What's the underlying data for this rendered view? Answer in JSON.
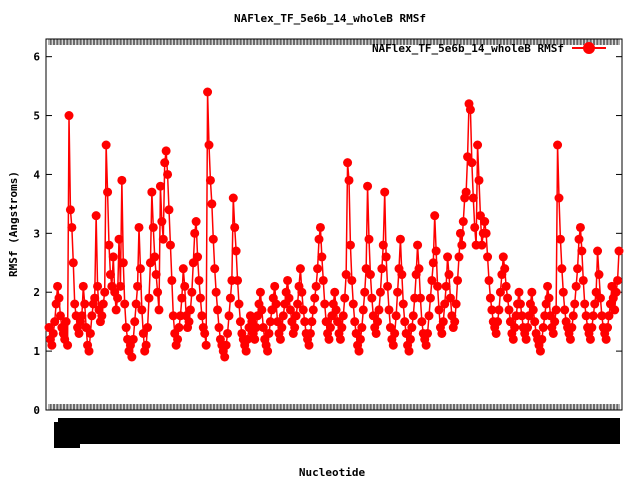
{
  "chart_data": {
    "type": "line",
    "title": "NAFlex_TF_5e6b_14_wholeB RMSf",
    "xlabel": "Nucleotide",
    "ylabel": "RMSf (Angstroms)",
    "ylim": [
      0,
      6.3
    ],
    "yticks": [
      "0",
      "1",
      "2",
      "3",
      "4",
      "5",
      "6"
    ],
    "x_tick_labels_legible": false,
    "legend_position": "top-right",
    "series": [
      {
        "name": "NAFlex_TF_5e6b_14_wholeB RMSf",
        "color": "#ff0000",
        "marker": "filled-circle",
        "values": [
          1.4,
          1.2,
          1.1,
          1.3,
          1.5,
          1.8,
          2.1,
          1.9,
          1.6,
          1.4,
          1.3,
          1.2,
          1.5,
          1.1,
          5.0,
          3.4,
          3.1,
          2.5,
          1.8,
          1.6,
          1.4,
          1.3,
          1.5,
          1.6,
          2.1,
          1.8,
          1.4,
          1.1,
          1.0,
          1.3,
          1.6,
          1.8,
          1.9,
          3.3,
          2.1,
          1.7,
          1.5,
          1.6,
          1.8,
          2.0,
          4.5,
          3.7,
          2.8,
          2.3,
          2.1,
          2.6,
          2.0,
          1.7,
          1.9,
          2.9,
          2.1,
          3.9,
          2.5,
          1.8,
          1.4,
          1.2,
          1.0,
          1.1,
          0.9,
          1.2,
          1.5,
          1.8,
          2.1,
          3.1,
          2.4,
          1.7,
          1.3,
          1.0,
          1.1,
          1.4,
          1.9,
          2.5,
          3.7,
          3.1,
          2.6,
          2.3,
          2.0,
          1.7,
          3.8,
          3.2,
          2.9,
          4.2,
          4.4,
          4.0,
          3.4,
          2.8,
          2.2,
          1.6,
          1.3,
          1.1,
          1.2,
          1.4,
          1.6,
          1.9,
          2.4,
          2.1,
          1.6,
          1.4,
          1.5,
          1.7,
          2.0,
          2.5,
          3.0,
          3.2,
          2.6,
          2.2,
          1.9,
          1.6,
          1.4,
          1.3,
          1.1,
          5.4,
          4.5,
          3.9,
          3.5,
          2.9,
          2.4,
          2.0,
          1.7,
          1.4,
          1.2,
          1.1,
          1.0,
          0.9,
          1.1,
          1.3,
          1.6,
          1.9,
          2.2,
          3.6,
          3.1,
          2.7,
          2.2,
          1.8,
          1.5,
          1.3,
          1.2,
          1.1,
          1.0,
          1.2,
          1.4,
          1.6,
          1.5,
          1.3,
          1.2,
          1.4,
          1.6,
          1.8,
          2.0,
          1.7,
          1.4,
          1.2,
          1.1,
          1.0,
          1.3,
          1.5,
          1.7,
          1.9,
          2.1,
          1.8,
          1.5,
          1.3,
          1.2,
          1.4,
          1.6,
          1.8,
          2.0,
          2.2,
          1.9,
          1.7,
          1.5,
          1.3,
          1.4,
          1.6,
          1.8,
          2.1,
          2.4,
          2.0,
          1.7,
          1.5,
          1.3,
          1.2,
          1.1,
          1.3,
          1.5,
          1.7,
          1.9,
          2.1,
          2.4,
          2.9,
          3.1,
          2.6,
          2.2,
          1.8,
          1.5,
          1.3,
          1.2,
          1.4,
          1.6,
          1.8,
          2.0,
          1.7,
          1.5,
          1.3,
          1.2,
          1.4,
          1.6,
          1.9,
          2.3,
          4.2,
          3.9,
          2.8,
          2.2,
          1.8,
          1.5,
          1.3,
          1.1,
          1.0,
          1.2,
          1.4,
          1.7,
          2.0,
          2.4,
          3.8,
          2.9,
          2.3,
          1.9,
          1.6,
          1.4,
          1.3,
          1.5,
          1.7,
          2.0,
          2.4,
          2.8,
          3.7,
          2.6,
          2.1,
          1.7,
          1.4,
          1.2,
          1.1,
          1.3,
          1.6,
          2.0,
          2.4,
          2.9,
          2.3,
          1.8,
          1.5,
          1.3,
          1.1,
          1.0,
          1.2,
          1.4,
          1.6,
          1.9,
          2.3,
          2.8,
          2.4,
          1.9,
          1.5,
          1.3,
          1.2,
          1.1,
          1.3,
          1.6,
          1.9,
          2.2,
          2.5,
          3.3,
          2.7,
          2.1,
          1.7,
          1.4,
          1.3,
          1.5,
          1.8,
          2.1,
          2.6,
          2.3,
          1.9,
          1.6,
          1.4,
          1.5,
          1.8,
          2.2,
          2.6,
          3.0,
          2.8,
          3.2,
          3.6,
          3.7,
          4.3,
          5.2,
          5.1,
          4.2,
          3.6,
          3.1,
          2.8,
          4.5,
          3.9,
          3.3,
          2.8,
          3.0,
          3.2,
          3.0,
          2.6,
          2.2,
          1.9,
          1.7,
          1.5,
          1.4,
          1.3,
          1.5,
          1.7,
          2.0,
          2.3,
          2.6,
          2.4,
          2.1,
          1.9,
          1.7,
          1.5,
          1.3,
          1.2,
          1.4,
          1.6,
          1.8,
          2.0,
          1.8,
          1.6,
          1.4,
          1.3,
          1.2,
          1.4,
          1.6,
          1.8,
          2.0,
          1.7,
          1.5,
          1.3,
          1.2,
          1.1,
          1.0,
          1.2,
          1.4,
          1.6,
          1.8,
          2.1,
          1.9,
          1.6,
          1.4,
          1.3,
          1.5,
          1.7,
          4.5,
          3.6,
          2.9,
          2.4,
          2.0,
          1.7,
          1.5,
          1.4,
          1.3,
          1.2,
          1.4,
          1.6,
          1.8,
          2.1,
          2.4,
          2.9,
          3.1,
          2.7,
          2.2,
          1.8,
          1.6,
          1.4,
          1.3,
          1.2,
          1.4,
          1.6,
          1.8,
          2.0,
          2.7,
          2.3,
          1.9,
          1.6,
          1.4,
          1.3,
          1.2,
          1.4,
          1.6,
          1.8,
          2.1,
          1.9,
          1.7,
          2.0,
          2.2,
          2.7
        ]
      }
    ]
  }
}
